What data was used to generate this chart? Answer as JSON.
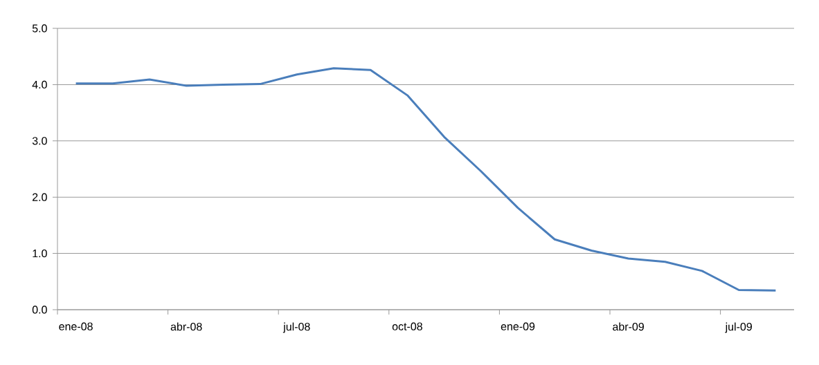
{
  "chart_data": {
    "type": "line",
    "categories": [
      "ene-08",
      null,
      null,
      "abr-08",
      null,
      null,
      "jul-08",
      null,
      null,
      "oct-08",
      null,
      null,
      "ene-09",
      null,
      null,
      "abr-09",
      null,
      null,
      "jul-09",
      null
    ],
    "series": [
      {
        "color": "#4a7ebb",
        "values": [
          4.02,
          4.02,
          4.09,
          3.98,
          4.0,
          4.01,
          4.18,
          4.29,
          4.26,
          3.81,
          3.07,
          2.46,
          1.81,
          1.25,
          1.05,
          0.91,
          0.85,
          0.69,
          0.35,
          0.34
        ]
      }
    ],
    "ylim": [
      0,
      5
    ],
    "yticks": [
      {
        "value": 0,
        "label": "0.0"
      },
      {
        "value": 1,
        "label": "1.0"
      },
      {
        "value": 2,
        "label": "2.0"
      },
      {
        "value": 3,
        "label": "3.0"
      },
      {
        "value": 4,
        "label": "4.0"
      },
      {
        "value": 5,
        "label": "5.0"
      }
    ],
    "grid": "y",
    "legend": false,
    "marker": "none",
    "line_style": "solid"
  }
}
